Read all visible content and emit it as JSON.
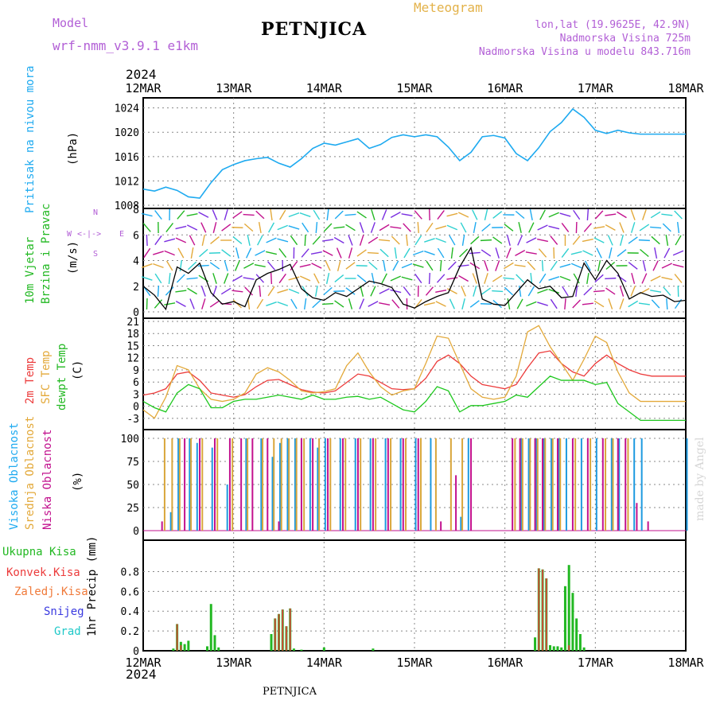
{
  "header": {
    "model_label": "Model",
    "model_name": "wrf-nmm_v3.9.1 e1km",
    "station": "PETNJICA",
    "title": "Meteogram",
    "coords": "lon,lat (19.9625E, 42.9N)",
    "elevation": "Nadmorska Visina 725m",
    "model_elevation": "Nadmorska Visina u modelu 843.716m"
  },
  "footer": {
    "station": "PETNJICA",
    "watermark": "made by Angel"
  },
  "time_axis": {
    "year": "2024",
    "ticks": [
      "12MAR",
      "13MAR",
      "14MAR",
      "15MAR",
      "16MAR",
      "17MAR",
      "18MAR"
    ],
    "hours_range": [
      0,
      144
    ]
  },
  "colors": {
    "pressure": "#1eaaf0",
    "temp2m": "#ec3b3b",
    "sfc": "#e3a93a",
    "dewpt": "#1ec81e",
    "cloud_high": "#1e9ae0",
    "cloud_mid": "#d9a63b",
    "cloud_low": "#c2118e",
    "precip_total": "#22b822",
    "precip_conv": "#e63a3a",
    "precip_snow": "#3a3ae0"
  },
  "chart_data": [
    {
      "type": "line",
      "panel": "pressure",
      "ylabel_1": "Pritisak na nivou mora",
      "ylabel_2": "(hPa)",
      "ylim": [
        1008,
        1025
      ],
      "yticks": [
        "1008",
        "1012",
        "1016",
        "1020",
        "1024"
      ],
      "grid": true,
      "series": [
        {
          "name": "Pritisak na nivou mora",
          "x": [
            0,
            3,
            6,
            9,
            12,
            15,
            18,
            21,
            24,
            27,
            30,
            33,
            36,
            39,
            42,
            45,
            48,
            51,
            54,
            57,
            60,
            63,
            66,
            69,
            72,
            75,
            78,
            81,
            84,
            87,
            90,
            93,
            96,
            99,
            102,
            105,
            108,
            111,
            114,
            117,
            120,
            123,
            126,
            129,
            132,
            135,
            138,
            141,
            144
          ],
          "y": [
            1010.5,
            1010.2,
            1010.8,
            1010.3,
            1009.3,
            1009.1,
            1011.5,
            1013.5,
            1014.3,
            1014.9,
            1015.2,
            1015.4,
            1014.5,
            1013.9,
            1015.2,
            1016.8,
            1017.6,
            1017.3,
            1017.8,
            1018.3,
            1016.8,
            1017.4,
            1018.5,
            1018.9,
            1018.6,
            1018.9,
            1018.6,
            1017.0,
            1014.9,
            1016.2,
            1018.6,
            1018.8,
            1018.4,
            1016.0,
            1014.9,
            1016.9,
            1019.4,
            1020.8,
            1022.9,
            1021.6,
            1019.6,
            1019.1,
            1019.6,
            1019.2,
            1019.0,
            1019.0,
            1019.0,
            1019.0,
            1019.0
          ]
        }
      ]
    },
    {
      "type": "line",
      "panel": "wind",
      "ylabel_1": "10m Vjetar",
      "ylabel_2": "Brzina i Pravac",
      "ylabel_3": "(m/s)",
      "compass": "N <-|-> E W S",
      "compass_n": "N",
      "compass_s": "S",
      "compass_e": "E",
      "compass_w": "W",
      "ylim": [
        0,
        8
      ],
      "yticks": [
        "0",
        "2",
        "4",
        "6",
        "8"
      ],
      "grid": true,
      "series": [
        {
          "name": "Brzina",
          "x": [
            0,
            3,
            6,
            9,
            12,
            15,
            18,
            21,
            24,
            27,
            30,
            33,
            36,
            39,
            42,
            45,
            48,
            51,
            54,
            57,
            60,
            63,
            66,
            69,
            72,
            75,
            78,
            81,
            84,
            87,
            90,
            93,
            96,
            99,
            102,
            105,
            108,
            111,
            114,
            117,
            120,
            123,
            126,
            129,
            132,
            135,
            138,
            141,
            144
          ],
          "y": [
            2.0,
            1.3,
            0.2,
            3.5,
            3.0,
            3.8,
            1.5,
            0.6,
            0.8,
            0.4,
            2.5,
            3.0,
            3.3,
            3.7,
            1.8,
            1.1,
            0.9,
            1.5,
            1.2,
            1.8,
            2.4,
            2.2,
            1.9,
            0.6,
            0.3,
            0.8,
            1.2,
            1.5,
            3.5,
            5.0,
            1.0,
            0.6,
            0.5,
            1.5,
            2.5,
            1.8,
            2.0,
            1.1,
            1.2,
            3.8,
            2.5,
            4.0,
            3.0,
            1.0,
            1.5,
            1.2,
            1.3,
            0.8,
            0.9
          ]
        }
      ]
    },
    {
      "type": "line",
      "panel": "temperature",
      "ylabel_1": "2m Temp",
      "ylabel_2": "SFC Temp",
      "ylabel_3": "dewpt Temp",
      "ylabel_4": "(C)",
      "ylim": [
        -4,
        21
      ],
      "yticks": [
        "-3",
        "0",
        "3",
        "6",
        "9",
        "12",
        "15",
        "18",
        "21"
      ],
      "grid": true,
      "series": [
        {
          "name": "2m Temp",
          "x": [
            0,
            3,
            6,
            9,
            12,
            15,
            18,
            21,
            24,
            27,
            30,
            33,
            36,
            39,
            42,
            45,
            48,
            51,
            54,
            57,
            60,
            63,
            66,
            69,
            72,
            75,
            78,
            81,
            84,
            87,
            90,
            93,
            96,
            99,
            102,
            105,
            108,
            111,
            114,
            117,
            120,
            123,
            126,
            129,
            132,
            135,
            138,
            141,
            144
          ],
          "y": [
            3.5,
            4.0,
            5.0,
            8.5,
            9.0,
            7.0,
            4.0,
            3.5,
            3.0,
            3.6,
            5.5,
            7.0,
            7.2,
            6.0,
            4.8,
            4.2,
            4.0,
            4.5,
            6.5,
            8.5,
            8.0,
            6.5,
            5.0,
            4.8,
            5.0,
            7.5,
            11.5,
            13.0,
            11.0,
            8.0,
            6.0,
            5.5,
            5.0,
            6.0,
            10.0,
            13.5,
            14.0,
            11.0,
            9.0,
            8.0,
            11.0,
            13.0,
            11.0,
            9.5,
            8.5,
            8.0,
            8.0,
            8.0,
            8.0
          ]
        },
        {
          "name": "SFC Temp",
          "x": [
            0,
            3,
            6,
            9,
            12,
            15,
            18,
            21,
            24,
            27,
            30,
            33,
            36,
            39,
            42,
            45,
            48,
            51,
            54,
            57,
            60,
            63,
            66,
            69,
            72,
            75,
            78,
            81,
            84,
            87,
            90,
            93,
            96,
            99,
            102,
            105,
            108,
            111,
            114,
            117,
            120,
            123,
            126,
            129,
            132,
            135,
            138,
            141,
            144
          ],
          "y": [
            0.0,
            -2.0,
            3.0,
            10.5,
            9.5,
            5.0,
            2.5,
            2.0,
            2.5,
            4.0,
            8.5,
            10.0,
            9.0,
            7.0,
            4.5,
            4.0,
            4.3,
            5.0,
            10.5,
            13.5,
            9.0,
            5.5,
            3.5,
            4.5,
            5.0,
            11.0,
            17.5,
            17.0,
            11.0,
            5.0,
            3.0,
            2.5,
            3.0,
            8.0,
            18.5,
            20.0,
            15.0,
            11.0,
            7.0,
            12.0,
            17.5,
            16.0,
            9.0,
            4.0,
            2.0,
            2.0,
            2.0,
            2.0,
            2.0
          ]
        },
        {
          "name": "dewpt Temp",
          "x": [
            0,
            3,
            6,
            9,
            12,
            15,
            18,
            21,
            24,
            27,
            30,
            33,
            36,
            39,
            42,
            45,
            48,
            51,
            54,
            57,
            60,
            63,
            66,
            69,
            72,
            75,
            78,
            81,
            84,
            87,
            90,
            93,
            96,
            99,
            102,
            105,
            108,
            111,
            114,
            117,
            120,
            123,
            126,
            129,
            132,
            135,
            138,
            141,
            144
          ],
          "y": [
            2.0,
            0.5,
            -0.5,
            4.0,
            6.0,
            5.0,
            0.5,
            0.5,
            2.0,
            2.5,
            2.5,
            3.0,
            3.5,
            3.0,
            2.5,
            3.5,
            2.5,
            2.5,
            3.0,
            3.2,
            2.5,
            3.0,
            1.5,
            0.0,
            -0.5,
            2.0,
            5.5,
            4.5,
            -0.5,
            1.0,
            1.0,
            1.5,
            2.0,
            3.5,
            3.0,
            5.5,
            8.0,
            7.0,
            7.0,
            7.0,
            6.0,
            6.5,
            1.5,
            -0.5,
            -2.5,
            -2.5,
            -2.5,
            -2.5,
            -2.5
          ]
        }
      ]
    },
    {
      "type": "bar",
      "panel": "clouds",
      "ylabel_1": "Visoka Oblacnost",
      "ylabel_2": "Srednja Oblacnost",
      "ylabel_3": "Niska Oblacnost",
      "ylabel_4": "(%)",
      "ylim": [
        0,
        100
      ],
      "yticks": [
        "0",
        "25",
        "50",
        "75",
        "100"
      ],
      "grid": true,
      "series": [
        {
          "name": "Visoka Oblacnost",
          "x": [
            7,
            9,
            12,
            14,
            18,
            22,
            27,
            31,
            34,
            36,
            38,
            40,
            44,
            46,
            48,
            52,
            56,
            60,
            64,
            68,
            72,
            76,
            80,
            84,
            86,
            100,
            102,
            104,
            106,
            108,
            110,
            112,
            116,
            120,
            124,
            126,
            130,
            132,
            136,
            140,
            144
          ],
          "y": [
            20,
            100,
            100,
            95,
            90,
            50,
            100,
            100,
            80,
            95,
            100,
            100,
            100,
            90,
            100,
            100,
            100,
            100,
            100,
            100,
            100,
            100,
            0,
            15,
            100,
            100,
            100,
            100,
            100,
            100,
            100,
            100,
            100,
            100,
            100,
            100,
            100,
            100,
            0,
            0,
            100
          ]
        },
        {
          "name": "Srednja Oblacnost",
          "x": [
            6,
            8,
            10,
            13,
            16,
            20,
            24,
            28,
            32,
            35,
            37,
            39,
            41,
            43,
            47,
            50,
            54,
            58,
            62,
            66,
            70,
            74,
            78,
            82,
            85,
            99,
            101,
            103,
            105,
            107,
            109,
            111,
            115,
            119,
            123,
            125,
            129,
            133,
            137,
            141
          ],
          "y": [
            100,
            100,
            100,
            100,
            100,
            100,
            100,
            100,
            100,
            100,
            100,
            100,
            100,
            100,
            100,
            100,
            100,
            100,
            100,
            100,
            100,
            100,
            100,
            100,
            100,
            100,
            100,
            100,
            100,
            100,
            100,
            100,
            100,
            100,
            100,
            100,
            100,
            0,
            0,
            0
          ]
        },
        {
          "name": "Niska Oblacnost",
          "x": [
            5,
            11,
            15,
            19,
            23,
            26,
            29,
            33,
            36,
            42,
            45,
            49,
            53,
            57,
            61,
            65,
            69,
            73,
            79,
            83,
            87,
            98,
            100,
            104,
            106,
            110,
            114,
            118,
            122,
            126,
            128,
            131,
            134
          ],
          "y": [
            10,
            100,
            100,
            100,
            100,
            100,
            100,
            100,
            10,
            100,
            100,
            100,
            100,
            100,
            100,
            100,
            100,
            100,
            10,
            60,
            100,
            100,
            100,
            100,
            100,
            100,
            100,
            100,
            100,
            100,
            100,
            30,
            10
          ]
        }
      ]
    },
    {
      "type": "bar",
      "panel": "precip",
      "ylabel_1": "1hr Precip (mm)",
      "legend": [
        "Ukupna Kisa",
        "Konvek.Kisa",
        "Zaledj.Kisa",
        "Snijeg",
        "Grad"
      ],
      "ylim": [
        0,
        0.9
      ],
      "yticks": [
        "0",
        "0.2",
        "0.4",
        "0.6",
        "0.8"
      ],
      "grid": true,
      "series": [
        {
          "name": "Ukupna Kisa",
          "x": [
            8,
            9,
            10,
            11,
            12,
            17,
            18,
            19,
            20,
            34,
            35,
            36,
            37,
            38,
            39,
            40,
            42,
            48,
            61,
            104,
            105,
            106,
            107,
            108,
            109,
            110,
            111,
            112,
            113,
            114,
            115,
            116,
            117
          ],
          "y": [
            0.02,
            0.24,
            0.08,
            0.06,
            0.09,
            0.04,
            0.42,
            0.14,
            0.03,
            0.15,
            0.29,
            0.33,
            0.37,
            0.22,
            0.38,
            0.02,
            0.01,
            0.03,
            0.02,
            0.12,
            0.74,
            0.73,
            0.65,
            0.05,
            0.04,
            0.04,
            0.03,
            0.58,
            0.77,
            0.52,
            0.29,
            0.15,
            0.03
          ]
        },
        {
          "name": "Konvek.Kisa",
          "x": [
            9,
            10,
            35,
            36,
            37,
            38,
            39,
            105,
            106,
            107,
            113
          ],
          "y": [
            0.24,
            0.05,
            0.29,
            0.33,
            0.37,
            0.22,
            0.38,
            0.74,
            0.73,
            0.65,
            0.05
          ]
        }
      ]
    }
  ]
}
